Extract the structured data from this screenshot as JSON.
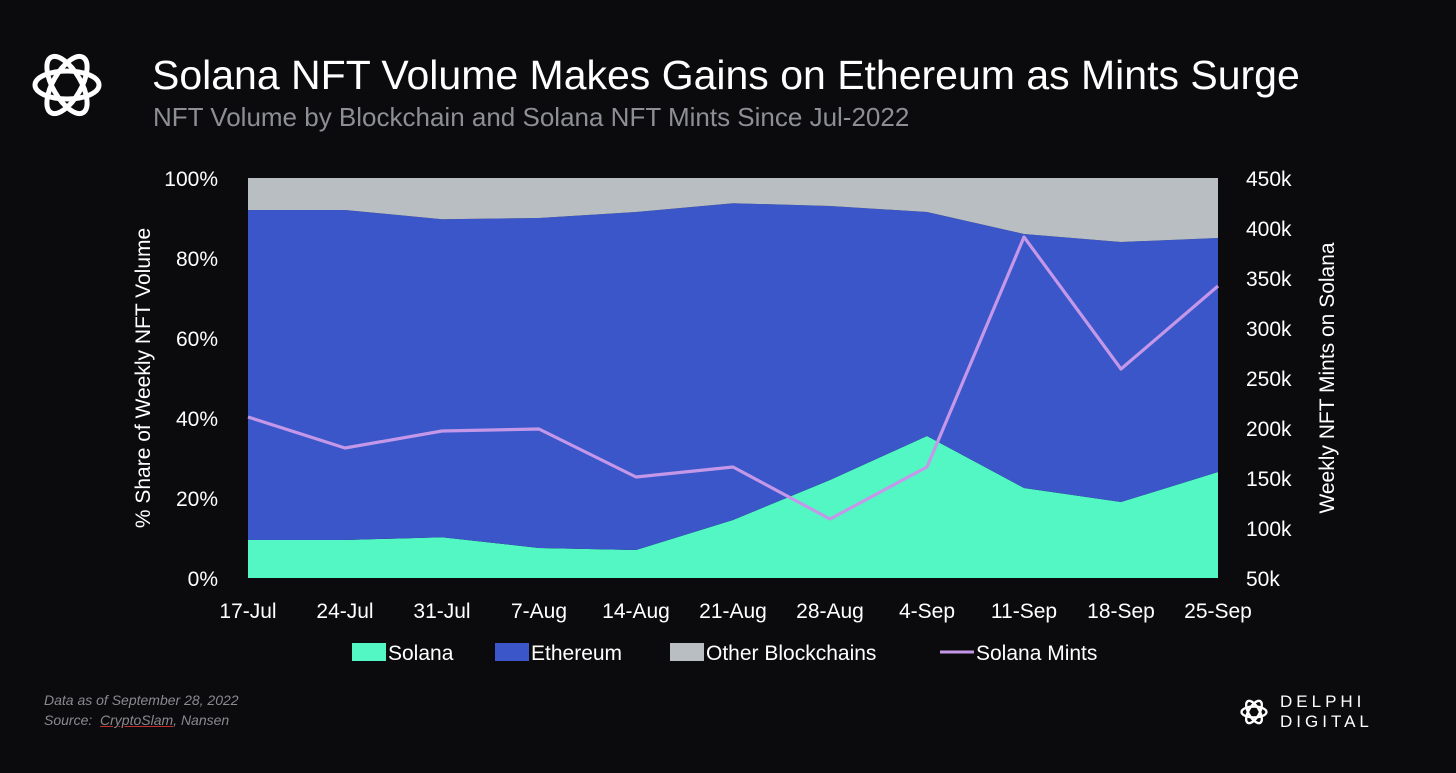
{
  "header": {
    "title": "Solana NFT Volume Makes Gains on Ethereum as Mints Surge",
    "subtitle": "NFT Volume by Blockchain and Solana NFT Mints Since Jul-2022",
    "logo_icon": "knot-logo-icon"
  },
  "chart_data": {
    "type": "area",
    "categories": [
      "17-Jul",
      "24-Jul",
      "31-Jul",
      "7-Aug",
      "14-Aug",
      "21-Aug",
      "28-Aug",
      "4-Sep",
      "11-Sep",
      "18-Sep",
      "25-Sep"
    ],
    "series": [
      {
        "name": "Solana",
        "type": "area",
        "stack": "volume",
        "color": "#52f7c4",
        "values": [
          9.5,
          9.5,
          10.2,
          7.5,
          7.0,
          14.5,
          24.5,
          35.5,
          22.5,
          19.0,
          26.5
        ]
      },
      {
        "name": "Ethereum",
        "type": "area",
        "stack": "volume",
        "color": "#3a56c8",
        "values": [
          82.5,
          82.5,
          79.5,
          82.5,
          84.5,
          79.2,
          68.5,
          56.0,
          63.5,
          65.0,
          58.5
        ]
      },
      {
        "name": "Other Blockchains",
        "type": "area",
        "stack": "volume",
        "color": "#b9bec2",
        "values": [
          8.0,
          8.0,
          10.3,
          10.0,
          8.5,
          6.3,
          7.0,
          8.5,
          14.0,
          16.0,
          15.0
        ]
      },
      {
        "name": "Solana Mints",
        "type": "line",
        "axis": "right",
        "color": "#c497e8",
        "values": [
          211000,
          180000,
          197000,
          199000,
          151000,
          161000,
          109000,
          161000,
          391000,
          259000,
          342000
        ]
      }
    ],
    "ylabel": "% Share of Weekly NFT Volume",
    "y2label": "Weekly NFT Mints on Solana",
    "ylim": [
      0,
      100
    ],
    "y2lim": [
      50000,
      450000
    ],
    "yticks": [
      "0%",
      "20%",
      "40%",
      "60%",
      "80%",
      "100%"
    ],
    "y2ticks": [
      "50k",
      "100k",
      "150k",
      "200k",
      "250k",
      "300k",
      "350k",
      "400k",
      "450k"
    ],
    "legend_position": "bottom",
    "grid": false
  },
  "footer": {
    "data_note": "Data as of September 28, 2022",
    "source_prefix": "Source:",
    "source_name": "CryptoSlam",
    "source_rest": ", Nansen",
    "brand": "DELPHI DIGITAL"
  }
}
